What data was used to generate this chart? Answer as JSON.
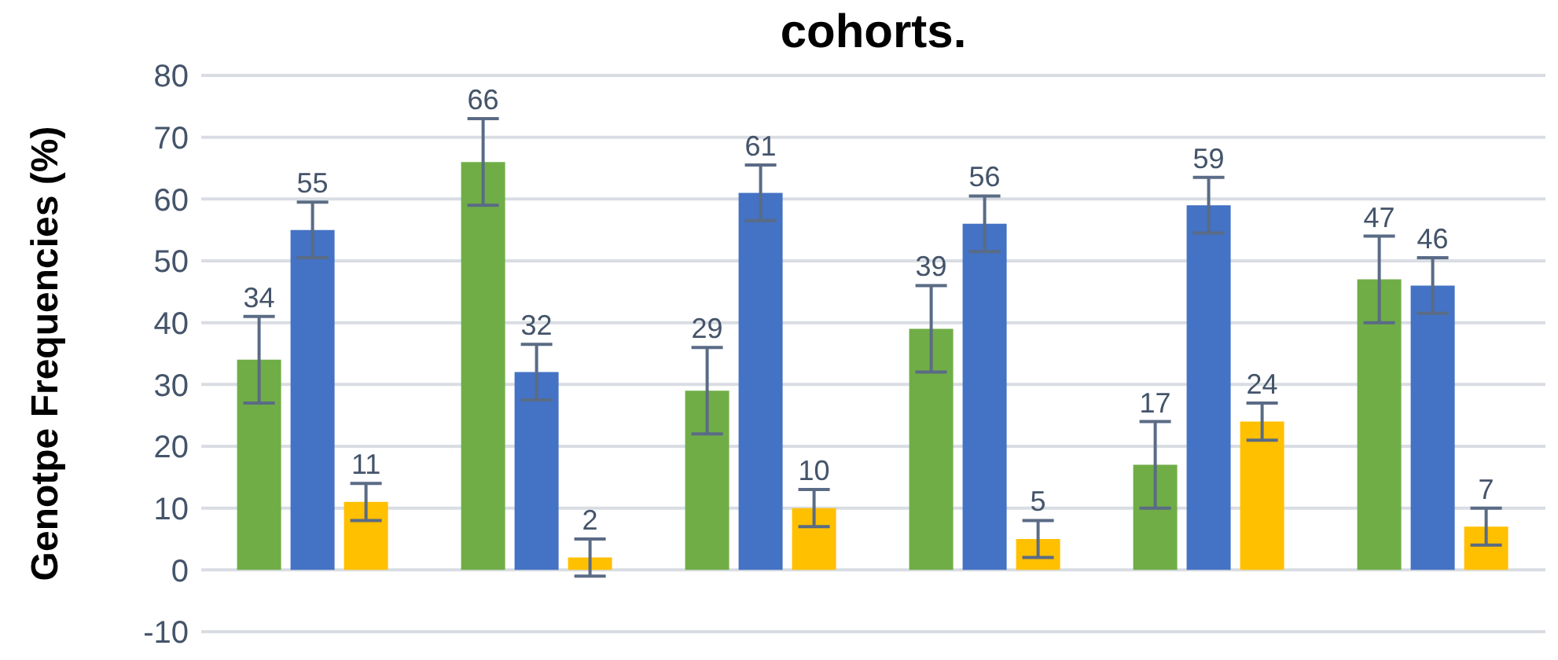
{
  "chart_data": {
    "type": "bar",
    "title": "cohorts.",
    "ylabel": "Genotpe Frequencies (%)",
    "categories": [
      null,
      null,
      null,
      null,
      null,
      null
    ],
    "series": [
      {
        "color": "#70ad47",
        "values": [
          34,
          66,
          29,
          39,
          17,
          47
        ],
        "errors": [
          7,
          7,
          7,
          7,
          7,
          7
        ]
      },
      {
        "color": "#4472c4",
        "values": [
          55,
          32,
          61,
          56,
          59,
          46
        ],
        "errors": [
          4.5,
          4.5,
          4.5,
          4.5,
          4.5,
          4.5
        ]
      },
      {
        "color": "#ffc000",
        "values": [
          11,
          2,
          10,
          5,
          24,
          7
        ],
        "errors": [
          3,
          3,
          3,
          3,
          3,
          3
        ]
      }
    ],
    "ylim": [
      -10,
      80
    ],
    "yticks": [
      -10,
      0,
      10,
      20,
      30,
      40,
      50,
      60,
      70,
      80
    ],
    "grid": "y",
    "data_labels": true,
    "legend": false
  }
}
